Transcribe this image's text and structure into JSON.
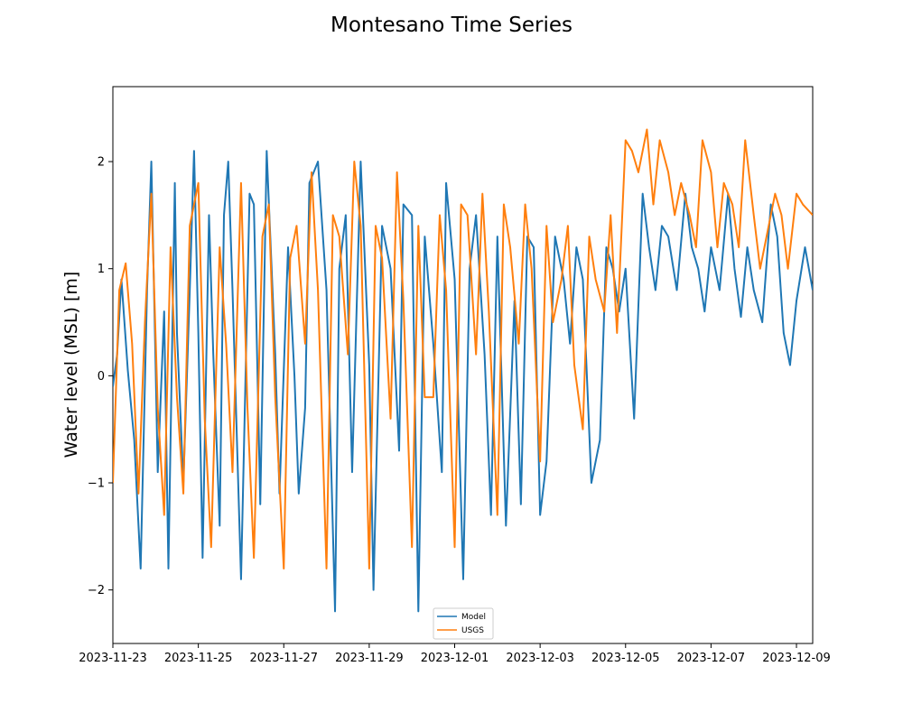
{
  "chart_data": {
    "type": "line",
    "title": "Montesano Time Series",
    "ylabel": "Water level (MSL) [m]",
    "xlabel": "",
    "x_ticks": [
      "2023-11-23",
      "2023-11-25",
      "2023-11-27",
      "2023-11-29",
      "2023-12-01",
      "2023-12-03",
      "2023-12-05",
      "2023-12-07",
      "2023-12-09"
    ],
    "y_ticks": [
      -2,
      -1,
      0,
      1,
      2
    ],
    "y_tick_labels": [
      "−2",
      "−1",
      "0",
      "1",
      "2"
    ],
    "xlim": [
      "2023-11-23",
      "2023-12-09T09:00"
    ],
    "ylim": [
      -2.5,
      2.7
    ],
    "grid": false,
    "legend_position": "lower center",
    "x_unit": "days since 2023-11-23",
    "series": [
      {
        "name": "Model",
        "color": "#1f77b4",
        "x": [
          0,
          0.1,
          0.2,
          0.35,
          0.5,
          0.65,
          0.8,
          0.9,
          1.0,
          1.05,
          1.2,
          1.3,
          1.45,
          1.5,
          1.65,
          1.8,
          1.9,
          2.0,
          2.1,
          2.25,
          2.35,
          2.5,
          2.6,
          2.7,
          2.8,
          3.0,
          3.2,
          3.3,
          3.45,
          3.6,
          3.8,
          3.9,
          4.1,
          4.25,
          4.35,
          4.5,
          4.6,
          4.8,
          5.0,
          5.2,
          5.3,
          5.45,
          5.6,
          5.8,
          6.0,
          6.1,
          6.3,
          6.5,
          6.7,
          6.8,
          7.0,
          7.15,
          7.3,
          7.5,
          7.7,
          7.8,
          8.0,
          8.2,
          8.35,
          8.5,
          8.7,
          8.85,
          9.0,
          9.2,
          9.4,
          9.55,
          9.7,
          9.85,
          10.0,
          10.15,
          10.35,
          10.55,
          10.7,
          10.85,
          11.0,
          11.2,
          11.4,
          11.55,
          11.7,
          11.85,
          12.0,
          12.2,
          12.4,
          12.55,
          12.7,
          12.85,
          13.0,
          13.2,
          13.4,
          13.55,
          13.7,
          13.85,
          14.0,
          14.2,
          14.4,
          14.55,
          14.7,
          14.85,
          15.0,
          15.2,
          15.4,
          15.55,
          15.7,
          15.85,
          16.0,
          16.2,
          16.38
        ],
        "y": [
          -0.1,
          0.2,
          0.9,
          0.05,
          -0.6,
          -1.8,
          0.8,
          2.0,
          0.1,
          -0.9,
          0.6,
          -1.8,
          1.8,
          0.4,
          -1.0,
          0.8,
          2.1,
          0.4,
          -1.7,
          1.5,
          0.2,
          -1.4,
          1.5,
          2.0,
          0.8,
          -1.9,
          1.7,
          1.6,
          -1.2,
          2.1,
          0.2,
          -1.1,
          1.2,
          0.0,
          -1.1,
          -0.3,
          1.8,
          2.0,
          0.8,
          -2.2,
          1.0,
          1.5,
          -0.9,
          2.0,
          0.1,
          -2.0,
          1.4,
          1.0,
          -0.7,
          1.6,
          1.5,
          -2.2,
          1.3,
          0.3,
          -0.9,
          1.8,
          0.9,
          -1.9,
          1.0,
          1.5,
          0.2,
          -1.3,
          1.3,
          -1.4,
          0.7,
          -1.2,
          1.3,
          1.2,
          -1.3,
          -0.8,
          1.3,
          0.9,
          0.3,
          1.2,
          0.9,
          -1.0,
          -0.6,
          1.2,
          1.0,
          0.6,
          1.0,
          -0.4,
          1.7,
          1.2,
          0.8,
          1.4,
          1.3,
          0.8,
          1.7,
          1.2,
          1.0,
          0.6,
          1.2,
          0.8,
          1.7,
          1.0,
          0.55,
          1.2,
          0.8,
          0.5,
          1.6,
          1.3,
          0.4,
          0.1,
          0.7,
          1.2,
          0.8
        ]
      },
      {
        "name": "USGS",
        "color": "#ff7f0e",
        "x": [
          0,
          0.15,
          0.3,
          0.45,
          0.6,
          0.75,
          0.9,
          1.05,
          1.2,
          1.35,
          1.5,
          1.65,
          1.8,
          2.0,
          2.15,
          2.3,
          2.5,
          2.65,
          2.8,
          3.0,
          3.15,
          3.3,
          3.5,
          3.65,
          3.8,
          4.0,
          4.15,
          4.3,
          4.5,
          4.65,
          4.8,
          5.0,
          5.15,
          5.3,
          5.5,
          5.65,
          5.8,
          6.0,
          6.15,
          6.3,
          6.5,
          6.65,
          6.8,
          7.0,
          7.15,
          7.3,
          7.5,
          7.65,
          7.8,
          8.0,
          8.15,
          8.3,
          8.5,
          8.65,
          8.8,
          9.0,
          9.15,
          9.3,
          9.5,
          9.65,
          9.8,
          10.0,
          10.15,
          10.3,
          10.5,
          10.65,
          10.8,
          11.0,
          11.15,
          11.3,
          11.5,
          11.65,
          11.8,
          12.0,
          12.15,
          12.3,
          12.5,
          12.65,
          12.8,
          13.0,
          13.15,
          13.3,
          13.5,
          13.65,
          13.8,
          14.0,
          14.15,
          14.3,
          14.5,
          14.65,
          14.8,
          15.0,
          15.15,
          15.3,
          15.5,
          15.65,
          15.8,
          16.0,
          16.15,
          16.38
        ],
        "y": [
          -1.0,
          0.8,
          1.05,
          0.3,
          -1.1,
          0.5,
          1.7,
          -0.3,
          -1.3,
          1.2,
          -0.2,
          -1.1,
          1.4,
          1.8,
          -0.4,
          -1.6,
          1.2,
          0.3,
          -0.9,
          1.8,
          -0.3,
          -1.7,
          1.3,
          1.6,
          -0.2,
          -1.8,
          1.1,
          1.4,
          0.3,
          1.9,
          0.8,
          -1.8,
          1.5,
          1.3,
          0.2,
          2.0,
          1.4,
          -1.8,
          1.4,
          1.1,
          -0.4,
          1.9,
          0.7,
          -1.6,
          1.4,
          -0.2,
          -0.2,
          1.5,
          0.8,
          -1.6,
          1.6,
          1.5,
          0.2,
          1.7,
          0.6,
          -1.3,
          1.6,
          1.2,
          0.3,
          1.6,
          1.0,
          -0.8,
          1.4,
          0.5,
          0.9,
          1.4,
          0.1,
          -0.5,
          1.3,
          0.9,
          0.6,
          1.5,
          0.4,
          2.2,
          2.1,
          1.9,
          2.3,
          1.6,
          2.2,
          1.9,
          1.5,
          1.8,
          1.5,
          1.2,
          2.2,
          1.9,
          1.2,
          1.8,
          1.6,
          1.2,
          2.2,
          1.5,
          1.0,
          1.3,
          1.7,
          1.5,
          1.0,
          1.7,
          1.6,
          1.5
        ]
      }
    ]
  }
}
